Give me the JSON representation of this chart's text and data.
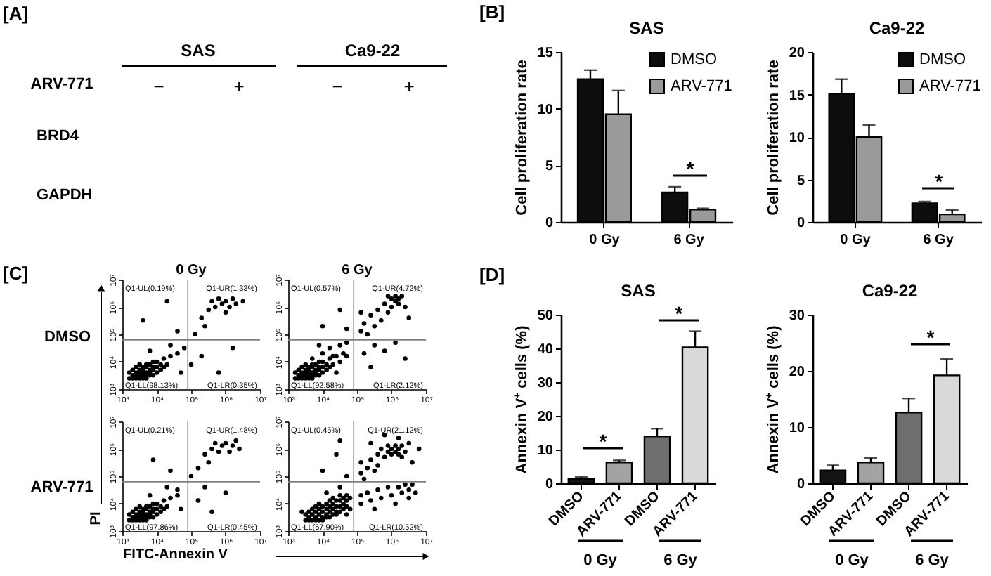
{
  "chart_data": [
    {
      "type": "other",
      "annotations": [
        "[A]",
        "SAS",
        "Ca9-22",
        "ARV-771",
        "−",
        "+",
        "−",
        "+",
        "BRD4",
        "GAPDH"
      ]
    },
    {
      "type": "bar",
      "title": "SAS",
      "ylabel": "Cell proliferation rate",
      "categories": [
        "0 Gy",
        "6 Gy"
      ],
      "series": [
        {
          "name": "DMSO",
          "color": "#0d0d0d",
          "values": [
            12.6,
            2.6
          ],
          "errors": [
            [
              12.6,
              13.4
            ],
            [
              2.6,
              3.1
            ]
          ]
        },
        {
          "name": "ARV-771",
          "color": "#9a9a9a",
          "values": [
            9.5,
            1.1
          ],
          "errors": [
            [
              9.5,
              11.6
            ],
            [
              1.1,
              1.2
            ]
          ]
        }
      ],
      "ylim": [
        0,
        15
      ],
      "yticks": [
        0,
        5,
        10,
        15
      ],
      "legend": "top right",
      "annotations": [
        "[B]",
        "*"
      ]
    },
    {
      "type": "bar",
      "title": "Ca9-22",
      "ylabel": "Cell proliferation rate",
      "categories": [
        "0 Gy",
        "6 Gy"
      ],
      "series": [
        {
          "name": "DMSO",
          "color": "#0d0d0d",
          "values": [
            15.1,
            2.2
          ],
          "errors": [
            [
              15.1,
              16.8
            ],
            [
              2.2,
              2.4
            ]
          ]
        },
        {
          "name": "ARV-771",
          "color": "#9a9a9a",
          "values": [
            10.0,
            0.9
          ],
          "errors": [
            [
              10.0,
              11.4
            ],
            [
              0.9,
              1.4
            ]
          ]
        }
      ],
      "ylim": [
        0,
        20
      ],
      "yticks": [
        0,
        5,
        10,
        15,
        20
      ],
      "legend": "top right",
      "annotations": [
        "*"
      ]
    },
    {
      "type": "scatter",
      "title": "0 Gy",
      "annotations": [
        "[C]",
        "DMSO",
        "Q1-UL(0.19%)",
        "Q1-UR(1.33%)",
        "Q1-LL(98.13%)",
        "Q1-LR(0.35%)"
      ],
      "color": "#000000",
      "marker": "circle",
      "log": "xy",
      "xlim": [
        1000.0,
        10000000.0
      ],
      "ylim": [
        1000.0,
        10000000.0
      ],
      "xticks": [
        {
          "value": 1000.0,
          "label": "10³"
        },
        {
          "value": 10000.0,
          "label": "10⁴"
        },
        {
          "value": 100000.0,
          "label": "10⁵"
        },
        {
          "value": 1000000.0,
          "label": "10⁶"
        },
        {
          "value": 10000000.0,
          "label": "10⁷"
        }
      ],
      "yticks": [
        {
          "value": 1000.0,
          "label": "10³"
        },
        {
          "value": 10000.0,
          "label": "10⁴"
        },
        {
          "value": 100000.0,
          "label": "10⁵"
        },
        {
          "value": 1000000.0,
          "label": "10⁶"
        },
        {
          "value": 10000000.0,
          "label": "10⁷"
        }
      ],
      "ref_lines": [
        {
          "axis": "x",
          "value": 80000.0,
          "color": "#808080"
        },
        {
          "axis": "y",
          "value": 63000.0,
          "color": "#808080"
        }
      ],
      "x": [
        1600.0,
        1600.0,
        2000.0,
        2000.0,
        2000.0,
        2500.0,
        2500.0,
        2500.0,
        2500.0,
        3200.0,
        3200.0,
        3200.0,
        3200.0,
        3200.0,
        4000.0,
        4000.0,
        4000.0,
        4000.0,
        4000.0,
        5000.0,
        5000.0,
        5000.0,
        5000.0,
        5000.0,
        6300.0,
        6300.0,
        6300.0,
        6300.0,
        7900.0,
        7900.0,
        7900.0,
        7900.0,
        10000.0,
        10000.0,
        10000.0,
        13000.0,
        13000.0,
        16000.0,
        16000.0,
        20000.0,
        25000.0,
        40000.0,
        63000.0,
        25000.0,
        6300.0,
        100000.0,
        50000.0,
        200000.0,
        630000.0,
        1600000.0,
        4000.0,
        20000.0,
        40000.0,
        130000.0,
        200000.0,
        320000.0,
        400000.0,
        500000.0,
        630000.0,
        790000.0,
        1000000.0,
        1000000.0,
        1300000.0,
        1600000.0,
        2000000.0,
        250000.0,
        3200000.0
      ],
      "values": [
        2500.0,
        4000.0,
        2500.0,
        3200.0,
        5000.0,
        2500.0,
        3200.0,
        4000.0,
        6300.0,
        2500.0,
        3200.0,
        4000.0,
        5000.0,
        7900.0,
        2500.0,
        3200.0,
        4000.0,
        5000.0,
        6300.0,
        2500.0,
        3200.0,
        4000.0,
        6300.0,
        7900.0,
        3200.0,
        4000.0,
        5000.0,
        7900.0,
        3200.0,
        5000.0,
        6300.0,
        10000.0,
        4000.0,
        6300.0,
        10000.0,
        5000.0,
        7900.0,
        6300.0,
        13000.0,
        7900.0,
        16000.0,
        20000.0,
        32000.0,
        40000.0,
        25000.0,
        7900.0,
        4000.0,
        16000.0,
        4000.0,
        32000.0,
        320000.0,
        1600000.0,
        130000.0,
        100000.0,
        400000.0,
        790000.0,
        1600000.0,
        1000000.0,
        2000000.0,
        1300000.0,
        630000.0,
        1600000.0,
        1000000.0,
        2000000.0,
        1300000.0,
        200000.0,
        1600000.0
      ]
    },
    {
      "type": "scatter",
      "title": "6 Gy",
      "annotations": [
        "Q1-UL(0.57%)",
        "Q1-UR(4.72%)",
        "Q1-LL(92.58%)",
        "Q1-LR(2.12%)"
      ],
      "color": "#000000",
      "marker": "circle",
      "log": "xy",
      "xlim": [
        1000.0,
        10000000.0
      ],
      "ylim": [
        1000.0,
        10000000.0
      ],
      "xticks": [
        {
          "value": 1000.0,
          "label": "10³"
        },
        {
          "value": 10000.0,
          "label": "10⁴"
        },
        {
          "value": 100000.0,
          "label": "10⁵"
        },
        {
          "value": 1000000.0,
          "label": "10⁶"
        },
        {
          "value": 10000000.0,
          "label": "10⁷"
        }
      ],
      "yticks": [
        {
          "value": 1000.0,
          "label": "10³"
        },
        {
          "value": 10000.0,
          "label": "10⁴"
        },
        {
          "value": 100000.0,
          "label": "10⁵"
        },
        {
          "value": 1000000.0,
          "label": "10⁶"
        },
        {
          "value": 10000000.0,
          "label": "10⁷"
        }
      ],
      "ref_lines": [
        {
          "axis": "x",
          "value": 80000.0,
          "color": "#808080"
        },
        {
          "axis": "y",
          "value": 63000.0,
          "color": "#808080"
        }
      ],
      "x": [
        1600.0,
        1600.0,
        2000.0,
        2000.0,
        2000.0,
        2500.0,
        2500.0,
        2500.0,
        2500.0,
        3200.0,
        3200.0,
        3200.0,
        3200.0,
        3200.0,
        4000.0,
        4000.0,
        4000.0,
        4000.0,
        4000.0,
        5000.0,
        5000.0,
        5000.0,
        5000.0,
        5000.0,
        6300.0,
        6300.0,
        6300.0,
        6300.0,
        7900.0,
        7900.0,
        7900.0,
        7900.0,
        10000.0,
        10000.0,
        10000.0,
        13000.0,
        13000.0,
        16000.0,
        16000.0,
        20000.0,
        25000.0,
        40000.0,
        25000.0,
        32000.0,
        20000.0,
        5000.0,
        50000.0,
        10000.0,
        32000.0,
        16000.0,
        7900.0,
        50000.0,
        160000.0,
        320000.0,
        630000.0,
        1300000.0,
        2500000.0,
        250000.0,
        10000.0,
        32000.0,
        50000.0,
        130000.0,
        160000.0,
        200000.0,
        250000.0,
        320000.0,
        400000.0,
        500000.0,
        630000.0,
        790000.0,
        1000000.0,
        1000000.0,
        1300000.0,
        1300000.0,
        1600000.0,
        1600000.0,
        2000000.0,
        2500000.0,
        790000.0,
        3200000.0,
        130000.0
      ],
      "values": [
        2500.0,
        4000.0,
        2500.0,
        3200.0,
        5000.0,
        2500.0,
        3200.0,
        4000.0,
        6300.0,
        2500.0,
        3200.0,
        4000.0,
        5000.0,
        7900.0,
        2500.0,
        3200.0,
        4000.0,
        5000.0,
        6300.0,
        2500.0,
        3200.0,
        4000.0,
        6300.0,
        7900.0,
        3200.0,
        4000.0,
        5000.0,
        7900.0,
        3200.0,
        5000.0,
        6300.0,
        10000.0,
        4000.0,
        6300.0,
        10000.0,
        5000.0,
        7900.0,
        6300.0,
        13000.0,
        7900.0,
        16000.0,
        20000.0,
        4000.0,
        10000.0,
        16000.0,
        13000.0,
        16000.0,
        20000.0,
        40000.0,
        32000.0,
        40000.0,
        50000.0,
        20000.0,
        40000.0,
        25000.0,
        50000.0,
        13000.0,
        6300.0,
        200000.0,
        790000.0,
        160000.0,
        130000.0,
        250000.0,
        100000.0,
        500000.0,
        200000.0,
        790000.0,
        320000.0,
        1300000.0,
        630000.0,
        2000000.0,
        1000000.0,
        2500000.0,
        1600000.0,
        2000000.0,
        1300000.0,
        2500000.0,
        1000000.0,
        2500000.0,
        400000.0,
        630000.0
      ]
    },
    {
      "type": "scatter",
      "ylabel": "PI",
      "xlabel": "FITC-Annexin V",
      "annotations": [
        "ARV-771",
        "Q1-UL(0.21%)",
        "Q1-UR(1.48%)",
        "Q1-LL(97.86%)",
        "Q1-LR(0.45%)"
      ],
      "color": "#000000",
      "marker": "circle",
      "log": "xy",
      "xlim": [
        1000.0,
        10000000.0
      ],
      "ylim": [
        1000.0,
        10000000.0
      ],
      "xticks": [
        {
          "value": 1000.0,
          "label": "10³"
        },
        {
          "value": 10000.0,
          "label": "10⁴"
        },
        {
          "value": 100000.0,
          "label": "10⁵"
        },
        {
          "value": 1000000.0,
          "label": "10⁶"
        },
        {
          "value": 10000000.0,
          "label": "10⁷"
        }
      ],
      "yticks": [
        {
          "value": 1000.0,
          "label": "10³"
        },
        {
          "value": 10000.0,
          "label": "10⁴"
        },
        {
          "value": 100000.0,
          "label": "10⁵"
        },
        {
          "value": 1000000.0,
          "label": "10⁶"
        },
        {
          "value": 10000000.0,
          "label": "10⁷"
        }
      ],
      "ref_lines": [
        {
          "axis": "x",
          "value": 80000.0,
          "color": "#808080"
        },
        {
          "axis": "y",
          "value": 63000.0,
          "color": "#808080"
        }
      ],
      "x": [
        1600.0,
        1600.0,
        2000.0,
        2000.0,
        2000.0,
        2500.0,
        2500.0,
        2500.0,
        2500.0,
        3200.0,
        3200.0,
        3200.0,
        3200.0,
        3200.0,
        4000.0,
        4000.0,
        4000.0,
        4000.0,
        4000.0,
        5000.0,
        5000.0,
        5000.0,
        5000.0,
        5000.0,
        6300.0,
        6300.0,
        6300.0,
        6300.0,
        7900.0,
        7900.0,
        7900.0,
        7900.0,
        10000.0,
        10000.0,
        10000.0,
        13000.0,
        13000.0,
        16000.0,
        16000.0,
        20000.0,
        25000.0,
        40000.0,
        40000.0,
        20000.0,
        6300.0,
        50000.0,
        160000.0,
        400000.0,
        1000000.0,
        250000.0,
        7900.0,
        25000.0,
        160000.0,
        250000.0,
        400000.0,
        500000.0,
        630000.0,
        790000.0,
        1000000.0,
        1300000.0,
        1600000.0,
        2000000.0,
        320000.0,
        2500000.0,
        100000.0
      ],
      "values": [
        2500.0,
        4000.0,
        2500.0,
        3200.0,
        5000.0,
        2500.0,
        3200.0,
        4000.0,
        6300.0,
        2500.0,
        3200.0,
        4000.0,
        5000.0,
        7900.0,
        2500.0,
        3200.0,
        4000.0,
        5000.0,
        6300.0,
        2500.0,
        3200.0,
        4000.0,
        6300.0,
        7900.0,
        3200.0,
        4000.0,
        5000.0,
        7900.0,
        3200.0,
        5000.0,
        6300.0,
        10000.0,
        4000.0,
        6300.0,
        10000.0,
        5000.0,
        7900.0,
        6300.0,
        13000.0,
        7900.0,
        16000.0,
        20000.0,
        32000.0,
        40000.0,
        20000.0,
        6300.0,
        13000.0,
        5000.0,
        25000.0,
        40000.0,
        400000.0,
        160000.0,
        200000.0,
        630000.0,
        1000000.0,
        1600000.0,
        790000.0,
        1300000.0,
        1600000.0,
        790000.0,
        1300000.0,
        2000000.0,
        320000.0,
        1000000.0,
        100000.0
      ]
    },
    {
      "type": "scatter",
      "annotations": [
        "Q1-UL(0.45%)",
        "Q1-UR(21.12%)",
        "Q1-LL(67.90%)",
        "Q1-LR(10.52%)"
      ],
      "color": "#000000",
      "marker": "circle",
      "log": "xy",
      "xlim": [
        1000.0,
        10000000.0
      ],
      "ylim": [
        1000.0,
        10000000.0
      ],
      "xticks": [
        {
          "value": 1000.0,
          "label": "10³"
        },
        {
          "value": 10000.0,
          "label": "10⁴"
        },
        {
          "value": 100000.0,
          "label": "10⁵"
        },
        {
          "value": 1000000.0,
          "label": "10⁶"
        },
        {
          "value": 10000000.0,
          "label": "10⁷"
        }
      ],
      "yticks": [
        {
          "value": 1000.0,
          "label": "10³"
        },
        {
          "value": 10000.0,
          "label": "10⁴"
        },
        {
          "value": 100000.0,
          "label": "10⁵"
        },
        {
          "value": 1000000.0,
          "label": "10⁶"
        },
        {
          "value": 10000000.0,
          "label": "10⁷"
        }
      ],
      "ref_lines": [
        {
          "axis": "x",
          "value": 80000.0,
          "color": "#808080"
        },
        {
          "axis": "y",
          "value": 63000.0,
          "color": "#808080"
        }
      ],
      "x": [
        3200.0,
        3200.0,
        4000.0,
        4000.0,
        4000.0,
        5000.0,
        5000.0,
        5000.0,
        6300.0,
        6300.0,
        6300.0,
        6300.0,
        7900.0,
        7900.0,
        7900.0,
        7900.0,
        10000.0,
        10000.0,
        10000.0,
        10000.0,
        13000.0,
        13000.0,
        13000.0,
        13000.0,
        16000.0,
        16000.0,
        16000.0,
        16000.0,
        20000.0,
        20000.0,
        20000.0,
        20000.0,
        25000.0,
        25000.0,
        25000.0,
        25000.0,
        32000.0,
        32000.0,
        32000.0,
        32000.0,
        40000.0,
        40000.0,
        40000.0,
        50000.0,
        50000.0,
        50000.0,
        50000.0,
        63000.0,
        63000.0,
        32000.0,
        13000.0,
        2500.0,
        130000.0,
        130000.0,
        200000.0,
        250000.0,
        400000.0,
        500000.0,
        790000.0,
        1000000.0,
        1600000.0,
        2000000.0,
        2500000.0,
        3200000.0,
        4000000.0,
        3200000.0,
        1300000.0,
        320000.0,
        5000000.0,
        10000.0,
        25000.0,
        50000.0,
        32000.0,
        130000.0,
        130000.0,
        160000.0,
        200000.0,
        250000.0,
        320000.0,
        400000.0,
        400000.0,
        500000.0,
        630000.0,
        790000.0,
        790000.0,
        1000000.0,
        1000000.0,
        1300000.0,
        1300000.0,
        1600000.0,
        1600000.0,
        2000000.0,
        2000000.0,
        2500000.0,
        3200000.0,
        1600000.0,
        4000000.0,
        630000.0,
        6300000.0,
        250000.0
      ],
      "values": [
        2500.0,
        4000.0,
        2500.0,
        3200.0,
        5000.0,
        2500.0,
        4000.0,
        6300.0,
        2500.0,
        3200.0,
        5000.0,
        7900.0,
        2500.0,
        4000.0,
        6300.0,
        10000.0,
        2500.0,
        3200.0,
        5000.0,
        7900.0,
        3200.0,
        4000.0,
        6300.0,
        10000.0,
        3200.0,
        5000.0,
        7900.0,
        13000.0,
        4000.0,
        6300.0,
        10000.0,
        16000.0,
        4000.0,
        5000.0,
        7900.0,
        13000.0,
        5000.0,
        7900.0,
        13000.0,
        20000.0,
        6300.0,
        10000.0,
        16000.0,
        4000.0,
        7900.0,
        13000.0,
        20000.0,
        6300.0,
        16000.0,
        40000.0,
        25000.0,
        5000.0,
        20000.0,
        10000.0,
        25000.0,
        13000.0,
        32000.0,
        16000.0,
        40000.0,
        20000.0,
        40000.0,
        25000.0,
        50000.0,
        32000.0,
        50000.0,
        16000.0,
        10000.0,
        6300.0,
        25000.0,
        160000.0,
        630000.0,
        100000.0,
        2000000.0,
        130000.0,
        320000.0,
        79000.0,
        200000.0,
        400000.0,
        160000.0,
        630000.0,
        250000.0,
        1000000.0,
        500000.0,
        1300000.0,
        790000.0,
        630000.0,
        1000000.0,
        790000.0,
        1300000.0,
        630000.0,
        1000000.0,
        1300000.0,
        500000.0,
        790000.0,
        1600000.0,
        2500000.0,
        320000.0,
        3200000.0,
        1000000.0,
        1600000.0
      ]
    },
    {
      "type": "bar",
      "title": "SAS",
      "ylabel": "Annexin V⁺ cells (%)",
      "categories": [
        "DMSO",
        "ARV-771",
        "DMSO",
        "ARV-771"
      ],
      "values": [
        1.2,
        6.2,
        13.9,
        40.3
      ],
      "colors": [
        "#141414",
        "#a3a3a3",
        "#6e6e6e",
        "#d9d9d9"
      ],
      "errors": [
        [
          1.2,
          1.9
        ],
        [
          6.2,
          6.8
        ],
        [
          13.9,
          16.2
        ],
        [
          40.3,
          45.1
        ]
      ],
      "ylim": [
        0,
        50
      ],
      "yticks": [
        0,
        10,
        20,
        30,
        40,
        50
      ],
      "annotations": [
        "[D]",
        "*",
        "*",
        "0 Gy",
        "6 Gy"
      ]
    },
    {
      "type": "bar",
      "title": "Ca9-22",
      "ylabel": "Annexin V⁺ cells (%)",
      "categories": [
        "DMSO",
        "ARV-771",
        "DMSO",
        "ARV-771"
      ],
      "values": [
        2.3,
        3.7,
        12.6,
        19.2
      ],
      "colors": [
        "#141414",
        "#a3a3a3",
        "#6e6e6e",
        "#d9d9d9"
      ],
      "errors": [
        [
          2.3,
          3.2
        ],
        [
          3.7,
          4.5
        ],
        [
          12.6,
          15.1
        ],
        [
          19.2,
          22.1
        ]
      ],
      "ylim": [
        0,
        30
      ],
      "yticks": [
        0,
        10,
        20,
        30
      ],
      "annotations": [
        "*",
        "0 Gy",
        "6 Gy"
      ]
    }
  ]
}
